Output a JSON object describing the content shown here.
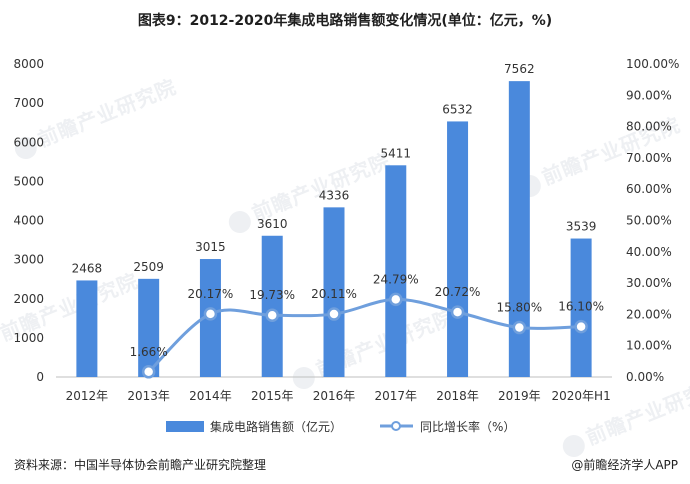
{
  "title": "图表9：2012-2020年集成电路销售额变化情况(单位：亿元，%)",
  "watermark": "前瞻产业研究院",
  "source_text": "资料来源：中国半导体协会前瞻产业研究院整理",
  "brand_text": "@前瞻经济学人APP",
  "colors": {
    "bar": "#4a89dc",
    "line": "#6f9fdd",
    "marker_fill": "#ffffff",
    "axis_text": "#333333",
    "axis_line": "#bfbfbf"
  },
  "chart_data": {
    "type": "bar",
    "title": "图表9：2012-2020年集成电路销售额变化情况(单位：亿元，%)",
    "categories": [
      "2012年",
      "2013年",
      "2014年",
      "2015年",
      "2016年",
      "2017年",
      "2018年",
      "2019年",
      "2020年H1"
    ],
    "series": [
      {
        "name": "集成电路销售额（亿元）",
        "type": "bar",
        "axis": "left",
        "values": [
          2468,
          2509,
          3015,
          3610,
          4336,
          5411,
          6532,
          7562,
          3539
        ],
        "labels": [
          "2468",
          "2509",
          "3015",
          "3610",
          "4336",
          "5411",
          "6532",
          "7562",
          "3539"
        ]
      },
      {
        "name": "同比增长率（%）",
        "type": "line",
        "axis": "right",
        "values": [
          null,
          1.66,
          20.17,
          19.73,
          20.11,
          24.79,
          20.72,
          15.8,
          16.1
        ],
        "labels": [
          "",
          "1.66%",
          "20.17%",
          "19.73%",
          "20.11%",
          "24.79%",
          "20.72%",
          "15.80%",
          "16.10%"
        ]
      }
    ],
    "y_left": {
      "lim": [
        0,
        8000
      ],
      "ticks": [
        "0",
        "1000",
        "2000",
        "3000",
        "4000",
        "5000",
        "6000",
        "7000",
        "8000"
      ]
    },
    "y_right": {
      "lim": [
        0,
        100
      ],
      "ticks": [
        "0.00%",
        "10.00%",
        "20.00%",
        "30.00%",
        "40.00%",
        "50.00%",
        "60.00%",
        "70.00%",
        "80.00%",
        "90.00%",
        "100.00%"
      ]
    },
    "grid": false,
    "legend_position": "bottom"
  }
}
